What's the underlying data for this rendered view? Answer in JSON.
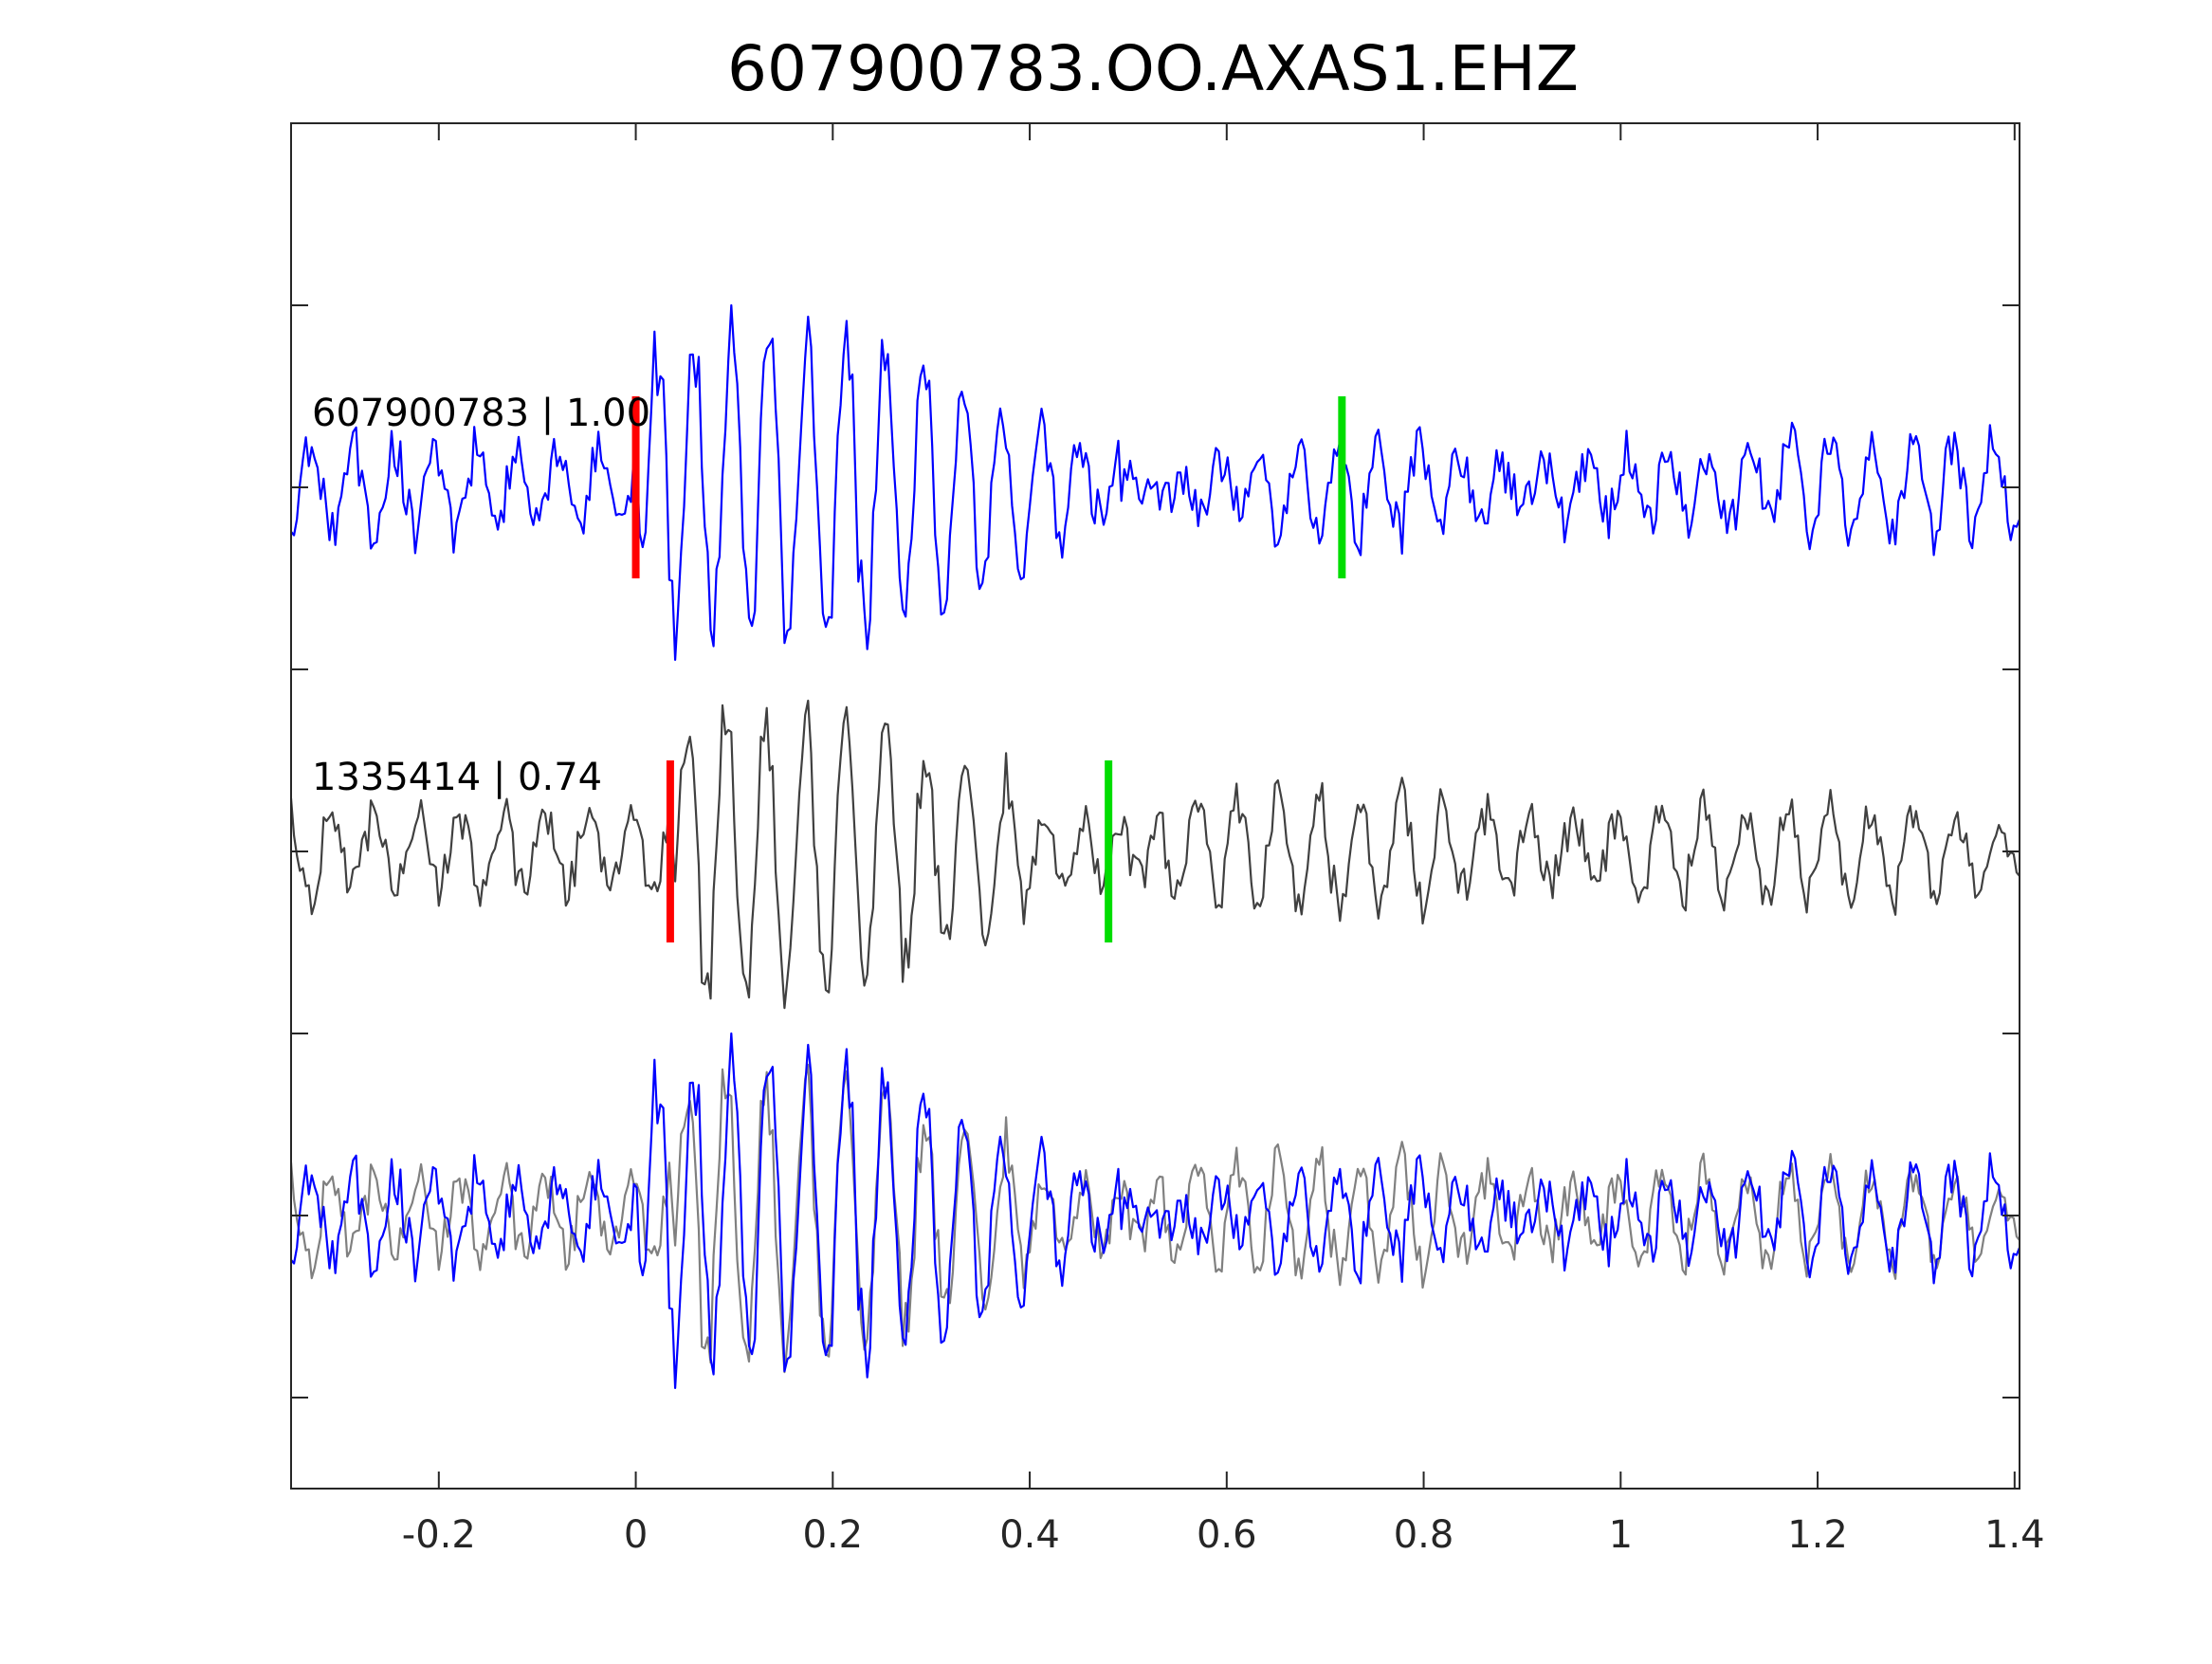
{
  "chart_data": {
    "type": "line",
    "title": "607900783.OO.AXAS1.EHZ",
    "xlabel": "",
    "ylabel": "",
    "xlim": [
      -0.35,
      1.405
    ],
    "ylim": [
      -3.5,
      0.25
    ],
    "grid": false,
    "x_ticks": [
      -0.2,
      0,
      0.2,
      0.4,
      0.6,
      0.8,
      1,
      1.2,
      1.4
    ],
    "x_tick_labels": [
      "-0.2",
      "0",
      "0.2",
      "0.4",
      "0.6",
      "0.8",
      "1",
      "1.2",
      "1.4"
    ],
    "y_ticks": [
      -3.25,
      -2.75,
      -2.25,
      -1.75,
      -1.25,
      -0.75,
      -0.25
    ],
    "colors": {
      "template": "#0000ff",
      "candidate": "#404040",
      "candidate_overlay": "#808080",
      "p_pick": "#ff0000",
      "s_pick": "#00dd00",
      "axes": "#262626"
    },
    "series": [
      {
        "label": "607900783 | 1.00",
        "baseline": -0.75,
        "peak_amplitude": 0.5,
        "peak_time": 0.006,
        "p_pick": 0.0,
        "s_pick": 0.717
      },
      {
        "label": "1335414 | 0.74",
        "baseline": -1.75,
        "peak_amplitude": 0.43,
        "peak_time": 0.05,
        "p_pick": 0.035,
        "s_pick": 0.48
      },
      {
        "label": "",
        "baseline": -2.75,
        "overlay_of": [
          "607900783 | 1.00",
          "1335414 | 0.74"
        ]
      }
    ]
  }
}
